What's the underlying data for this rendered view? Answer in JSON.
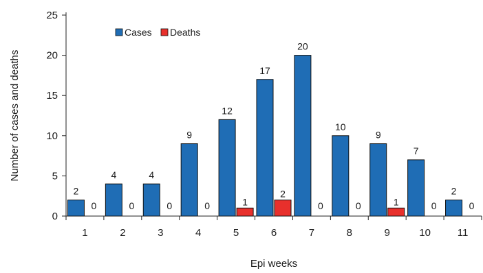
{
  "chart_data": {
    "type": "bar",
    "xlabel": "Epi weeks",
    "ylabel": "Number of cases and deaths",
    "ylim": [
      0,
      25
    ],
    "yticks": [
      0,
      5,
      10,
      15,
      20,
      25
    ],
    "categories": [
      "1",
      "2",
      "3",
      "4",
      "5",
      "6",
      "7",
      "8",
      "9",
      "10",
      "11"
    ],
    "series": [
      {
        "name": "Cases",
        "color": "#1f6db5",
        "values": [
          2,
          4,
          4,
          9,
          12,
          17,
          20,
          10,
          9,
          7,
          2
        ]
      },
      {
        "name": "Deaths",
        "color": "#e8302c",
        "values": [
          0,
          0,
          0,
          0,
          1,
          2,
          0,
          0,
          1,
          0,
          0
        ]
      }
    ],
    "legend_position": "top-left",
    "grid": false,
    "data_labels": true
  }
}
